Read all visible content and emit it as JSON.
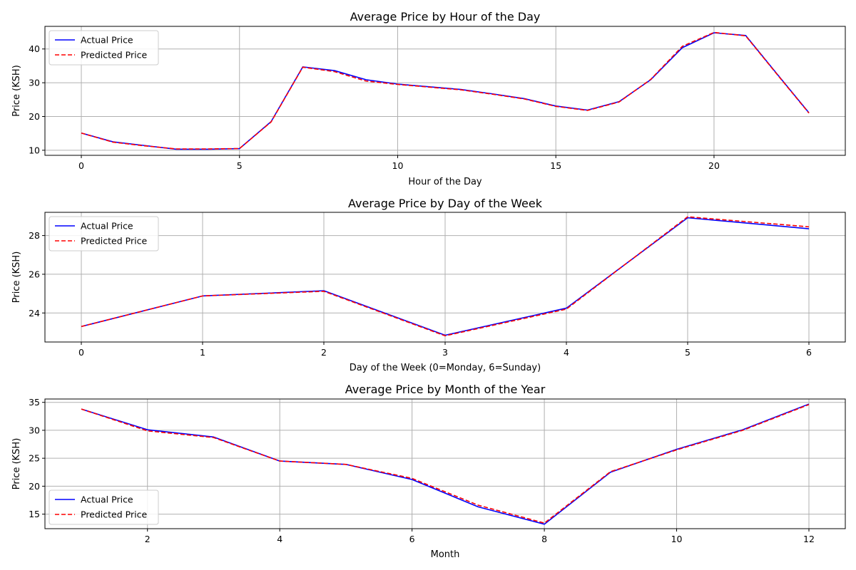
{
  "colors": {
    "actual": "#0000ff",
    "predicted": "#ff0000",
    "grid": "#b0b0b0",
    "axes": "#000000",
    "legend_border": "#cccccc"
  },
  "chart_data": [
    {
      "type": "line",
      "title": "Average Price by Hour of the Day",
      "xlabel": "Hour of the Day",
      "ylabel": "Price (KSH)",
      "xlim": [
        -1.15,
        24.15
      ],
      "ylim": [
        8.5,
        46.7
      ],
      "xticks": [
        0,
        5,
        10,
        15,
        20
      ],
      "yticks": [
        10,
        20,
        30,
        40
      ],
      "grid": true,
      "legend_position": "upper-left",
      "x": [
        0,
        1,
        2,
        3,
        4,
        5,
        6,
        7,
        8,
        9,
        10,
        11,
        12,
        13,
        14,
        15,
        16,
        17,
        18,
        19,
        20,
        21,
        22,
        23
      ],
      "series": [
        {
          "name": "Actual Price",
          "style": "solid",
          "values": [
            15.1,
            12.5,
            11.4,
            10.3,
            10.3,
            10.5,
            18.5,
            34.7,
            33.6,
            30.9,
            29.6,
            28.8,
            28.0,
            26.7,
            25.3,
            23.1,
            21.9,
            24.4,
            30.9,
            40.4,
            44.8,
            44.0,
            32.5,
            21.1
          ]
        },
        {
          "name": "Predicted Price",
          "style": "dashed",
          "values": [
            15.1,
            12.4,
            11.3,
            10.4,
            10.4,
            10.5,
            18.4,
            34.6,
            33.3,
            30.5,
            29.5,
            28.7,
            27.9,
            26.6,
            25.2,
            23.0,
            21.8,
            24.3,
            31.0,
            40.8,
            44.9,
            43.9,
            32.4,
            21.0
          ]
        }
      ]
    },
    {
      "type": "line",
      "title": "Average Price by Day of the Week",
      "xlabel": "Day of the Week (0=Monday, 6=Sunday)",
      "ylabel": "Price (KSH)",
      "xlim": [
        -0.3,
        6.3
      ],
      "ylim": [
        22.5,
        29.2
      ],
      "xticks": [
        0,
        1,
        2,
        3,
        4,
        5,
        6
      ],
      "yticks": [
        24,
        26,
        28
      ],
      "grid": true,
      "legend_position": "upper-left",
      "x": [
        0,
        1,
        2,
        3,
        4,
        5,
        6
      ],
      "series": [
        {
          "name": "Actual Price",
          "style": "solid",
          "values": [
            23.3,
            24.88,
            25.15,
            22.85,
            24.25,
            28.92,
            28.35
          ]
        },
        {
          "name": "Predicted Price",
          "style": "dashed",
          "values": [
            23.3,
            24.88,
            25.12,
            22.82,
            24.2,
            28.97,
            28.45
          ]
        }
      ]
    },
    {
      "type": "line",
      "title": "Average Price by Month of the Year",
      "xlabel": "Month",
      "ylabel": "Price (KSH)",
      "xlim": [
        0.45,
        12.55
      ],
      "ylim": [
        12.4,
        35.6
      ],
      "xticks": [
        2,
        4,
        6,
        8,
        10,
        12
      ],
      "yticks": [
        15,
        20,
        25,
        30,
        35
      ],
      "grid": true,
      "legend_position": "lower-left",
      "x": [
        1,
        2,
        3,
        4,
        5,
        6,
        7,
        8,
        9,
        10,
        11,
        12
      ],
      "series": [
        {
          "name": "Actual Price",
          "style": "solid",
          "values": [
            33.8,
            30.1,
            28.8,
            24.5,
            23.9,
            21.2,
            16.3,
            13.2,
            22.5,
            26.6,
            30.1,
            34.7
          ]
        },
        {
          "name": "Predicted Price",
          "style": "dashed",
          "values": [
            33.8,
            29.9,
            28.7,
            24.5,
            23.9,
            21.4,
            16.6,
            13.4,
            22.6,
            26.5,
            30.0,
            34.6
          ]
        }
      ]
    }
  ]
}
